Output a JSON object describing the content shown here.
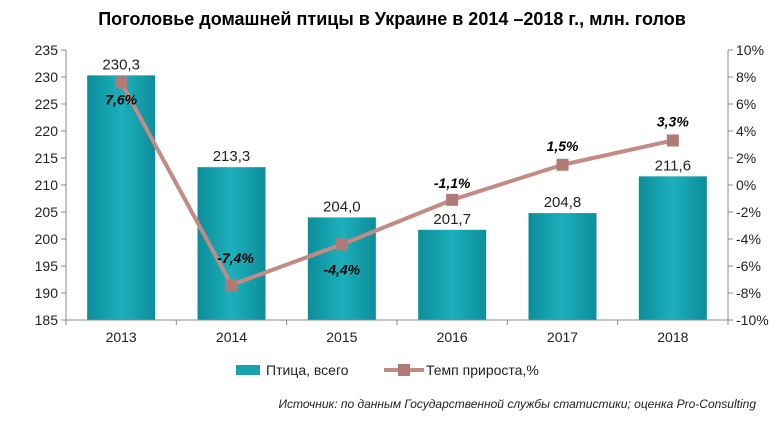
{
  "chart_data": {
    "type": "bar",
    "title": "Поголовье домашней птицы в Украине в 2014 –2018 г., млн. голов",
    "categories": [
      "2013",
      "2014",
      "2015",
      "2016",
      "2017",
      "2018"
    ],
    "series": [
      {
        "name": "Птица,  всего",
        "type": "bar",
        "axis": "left",
        "values": [
          230.3,
          213.3,
          204.0,
          201.7,
          204.8,
          211.6
        ],
        "labels": [
          "230,3",
          "213,3",
          "204,0",
          "201,7",
          "204,8",
          "211,6"
        ],
        "color": "#18A2AE"
      },
      {
        "name": "Темп прироста,%",
        "type": "line",
        "axis": "right",
        "values": [
          7.6,
          -7.4,
          -4.4,
          -1.1,
          1.5,
          3.3
        ],
        "labels": [
          "7,6%",
          "-7,4%",
          "-4,4%",
          "-1,1%",
          "1,5%",
          "3,3%"
        ],
        "color": "#C48A85"
      }
    ],
    "y_left": {
      "range": [
        185,
        235
      ],
      "ticks": [
        "185",
        "190",
        "195",
        "200",
        "205",
        "210",
        "215",
        "220",
        "225",
        "230",
        "235"
      ]
    },
    "y_right": {
      "range": [
        -10,
        10
      ],
      "ticks": [
        "-10%",
        "-8%",
        "-6%",
        "-4%",
        "-2%",
        "0%",
        "2%",
        "4%",
        "6%",
        "8%",
        "10%"
      ]
    },
    "grid": false,
    "legend_position": "bottom"
  },
  "source": "Источник: по данным Государственной службы статистики; оценка Pro-Consulting"
}
